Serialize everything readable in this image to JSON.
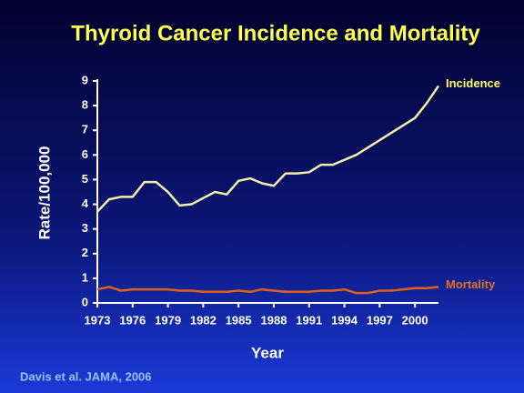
{
  "chart_data": {
    "type": "line",
    "title": "Thyroid Cancer Incidence and Mortality",
    "x_label": "Year",
    "y_label": "Rate/100,000",
    "source": "Davis et al. JAMA, 2006",
    "x": [
      1973,
      1974,
      1975,
      1976,
      1977,
      1978,
      1979,
      1980,
      1981,
      1982,
      1983,
      1984,
      1985,
      1986,
      1987,
      1988,
      1989,
      1990,
      1991,
      1992,
      1993,
      1994,
      1995,
      1996,
      1997,
      1998,
      1999,
      2000,
      2001,
      2002
    ],
    "series": [
      {
        "name": "Incidence",
        "color": "#f2f0a8",
        "label_color": "#ffff66",
        "values": [
          3.7,
          4.2,
          4.3,
          4.3,
          4.9,
          4.9,
          4.5,
          3.95,
          4.0,
          4.25,
          4.5,
          4.4,
          4.95,
          5.05,
          4.85,
          4.75,
          5.25,
          5.25,
          5.3,
          5.6,
          5.6,
          5.8,
          6.0,
          6.3,
          6.6,
          6.9,
          7.2,
          7.5,
          8.1,
          8.8
        ]
      },
      {
        "name": "Mortality",
        "color": "#e0601a",
        "label_color": "#e8701e",
        "values": [
          0.55,
          0.65,
          0.5,
          0.55,
          0.55,
          0.55,
          0.55,
          0.5,
          0.5,
          0.45,
          0.45,
          0.45,
          0.5,
          0.45,
          0.55,
          0.5,
          0.45,
          0.45,
          0.45,
          0.5,
          0.5,
          0.55,
          0.4,
          0.4,
          0.5,
          0.5,
          0.55,
          0.6,
          0.6,
          0.65
        ]
      }
    ],
    "xlim": [
      1973,
      2002
    ],
    "xticks": [
      1973,
      1976,
      1979,
      1982,
      1985,
      1988,
      1991,
      1994,
      1997,
      2000
    ],
    "ylim": [
      0,
      9
    ],
    "yticks": [
      0,
      1,
      2,
      3,
      4,
      5,
      6,
      7,
      8,
      9
    ],
    "grid": false
  }
}
